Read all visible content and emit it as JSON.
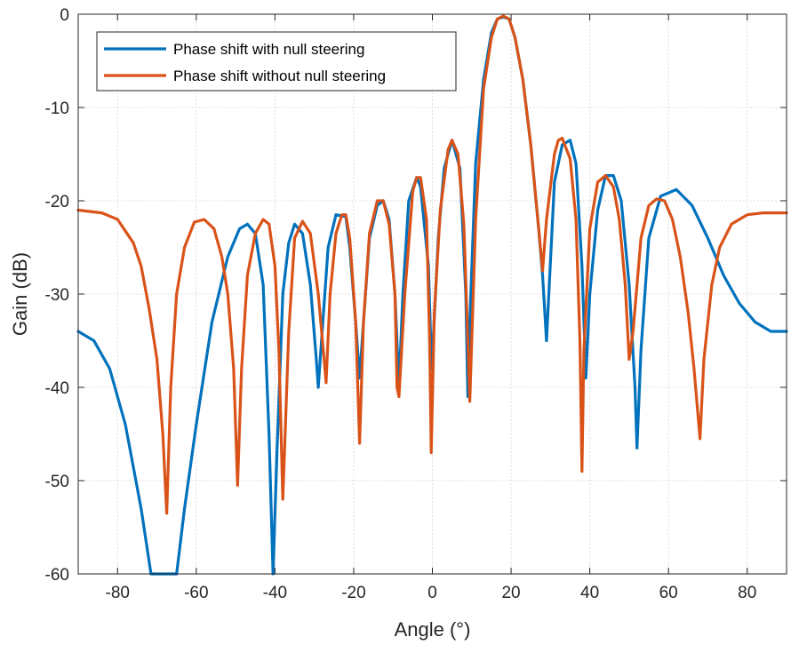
{
  "chart_data": {
    "type": "line",
    "title": "",
    "xlabel": "Angle (°)",
    "ylabel": "Gain (dB)",
    "xlim": [
      -90,
      90
    ],
    "ylim": [
      -60,
      0
    ],
    "xticks": [
      -80,
      -60,
      -40,
      -20,
      0,
      20,
      40,
      60,
      80
    ],
    "yticks": [
      0,
      -10,
      -20,
      -30,
      -40,
      -50,
      -60
    ],
    "grid": true,
    "legend_position": "top-left",
    "series": [
      {
        "name": "Phase shift with null steering",
        "color": "#0072BD",
        "x": [
          -90,
          -86,
          -82,
          -78,
          -74,
          -71.5,
          -70.5,
          -65,
          -63,
          -60,
          -56,
          -52,
          -49,
          -47,
          -45,
          -43,
          -41.5,
          -40.5,
          -39.5,
          -38,
          -36.5,
          -35,
          -33,
          -31,
          -29.5,
          -29,
          -28,
          -26.5,
          -24.5,
          -22,
          -21,
          -19.5,
          -18.5,
          -17.5,
          -16,
          -14,
          -12.5,
          -11,
          -9.5,
          -8.5,
          -7.5,
          -6,
          -4,
          -3,
          -1,
          -0.2,
          0.2,
          1.5,
          3,
          5,
          7,
          8.5,
          9,
          9.5,
          11,
          13,
          15,
          16.5,
          18,
          19.5,
          21,
          23,
          25,
          27,
          28,
          29,
          31,
          33,
          35,
          36.5,
          38,
          39,
          40,
          42,
          44,
          46,
          48,
          50,
          51.5,
          52,
          53,
          55,
          58,
          62,
          66,
          70,
          74,
          78,
          82,
          86,
          90
        ],
        "values": [
          -34,
          -35,
          -38,
          -44,
          -53,
          -60,
          -60,
          -60,
          -53,
          -44,
          -33,
          -26,
          -23,
          -22.5,
          -23.5,
          -29,
          -45,
          -60,
          -47,
          -30,
          -24.5,
          -22.5,
          -23.5,
          -29,
          -37,
          -40,
          -34,
          -25,
          -21.5,
          -21.7,
          -25,
          -33,
          -39,
          -33,
          -24,
          -20.5,
          -20,
          -22,
          -30,
          -40,
          -30,
          -20,
          -17.5,
          -18.5,
          -27,
          -38,
          -35,
          -24,
          -16.5,
          -13.5,
          -16.5,
          -30,
          -41,
          -33,
          -16,
          -7,
          -2,
          -0.5,
          -0.3,
          -0.5,
          -2.5,
          -7,
          -14,
          -23,
          -28,
          -35,
          -18,
          -14,
          -13.5,
          -16,
          -27,
          -39,
          -30,
          -21,
          -17.3,
          -17.3,
          -20,
          -29,
          -40,
          -46.5,
          -36,
          -24,
          -19.5,
          -18.8,
          -20.5,
          -24,
          -28,
          -31,
          -33,
          -34,
          -34
        ]
      },
      {
        "name": "Phase shift without null steering",
        "color": "#D95319",
        "x": [
          -90,
          -84,
          -80,
          -76,
          -74,
          -72,
          -70,
          -68.5,
          -67.5,
          -66.5,
          -65,
          -63,
          -60.5,
          -58,
          -55.5,
          -53.5,
          -52,
          -50.5,
          -49.5,
          -48.5,
          -47,
          -45,
          -43,
          -41.5,
          -40,
          -39,
          -38,
          -36.5,
          -35,
          -33,
          -31,
          -29,
          -27.5,
          -27,
          -26,
          -24.5,
          -23,
          -22,
          -21,
          -19.5,
          -18.5,
          -17.5,
          -16,
          -14,
          -12.5,
          -11,
          -9.5,
          -9,
          -8.5,
          -7,
          -5,
          -4,
          -3,
          -1.5,
          -0.7,
          -0.3,
          0.5,
          2,
          4,
          5,
          6.5,
          8,
          9,
          9.5,
          11,
          13,
          15,
          16.5,
          18,
          19.5,
          21,
          23,
          25,
          27,
          28,
          29,
          31,
          32,
          33,
          35,
          36.5,
          37.5,
          38,
          38.5,
          40,
          42,
          44,
          46,
          47.5,
          49,
          50,
          51,
          53,
          55,
          57,
          59,
          61,
          63,
          65,
          66.5,
          68,
          69,
          71,
          73,
          76,
          80,
          84,
          90
        ],
        "values": [
          -21,
          -21.3,
          -22,
          -24.5,
          -27,
          -31.5,
          -37,
          -45,
          -53.5,
          -40,
          -30,
          -25,
          -22.3,
          -22,
          -23,
          -26,
          -30,
          -38,
          -50.5,
          -38,
          -28,
          -23.5,
          -22,
          -22.5,
          -27,
          -36,
          -52,
          -34,
          -24,
          -22.2,
          -23.5,
          -30,
          -37,
          -39.5,
          -30,
          -23.5,
          -21.5,
          -21.5,
          -24,
          -33,
          -46,
          -33,
          -23.5,
          -20,
          -20,
          -22.5,
          -30,
          -40,
          -41,
          -30,
          -19,
          -17.5,
          -17.5,
          -22,
          -35,
          -47,
          -32,
          -21,
          -14.5,
          -13.5,
          -15,
          -22.5,
          -35,
          -41.5,
          -22,
          -8,
          -2.5,
          -0.5,
          -0.2,
          -0.5,
          -2.5,
          -7,
          -14,
          -23,
          -27.5,
          -22,
          -15,
          -13.5,
          -13.3,
          -15.5,
          -22,
          -35,
          -49,
          -36,
          -23,
          -18,
          -17.3,
          -18.5,
          -22,
          -29,
          -37,
          -34,
          -24,
          -20.5,
          -19.8,
          -20,
          -22,
          -26,
          -32,
          -38,
          -45.5,
          -37,
          -29,
          -25,
          -22.5,
          -21.5,
          -21.3,
          -21.3
        ]
      }
    ]
  }
}
